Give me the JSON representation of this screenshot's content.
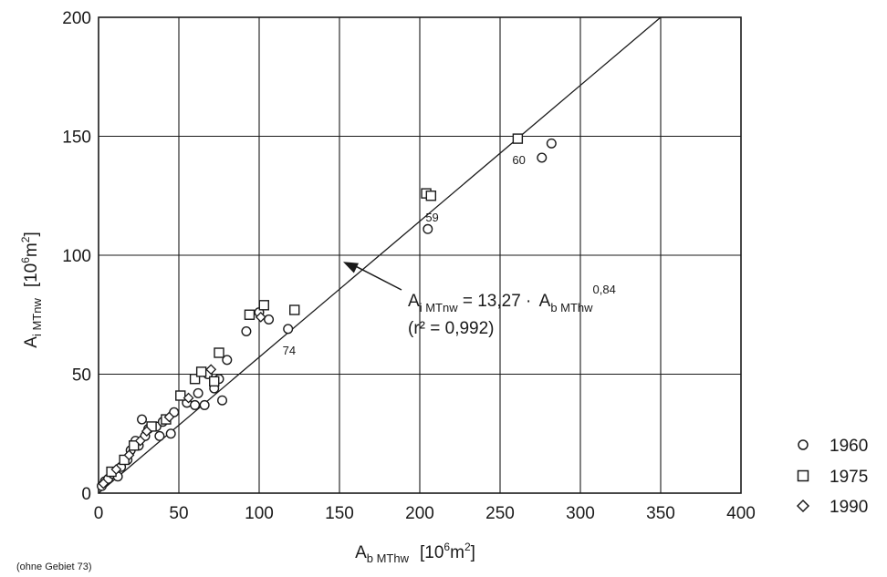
{
  "chart_data": {
    "type": "scatter",
    "x_axis": {
      "label_main": "A",
      "label_sub": "b MThw",
      "label_unit_pre": "[10",
      "label_unit_exp": "6",
      "label_unit_mid": "m",
      "label_unit_exp2": "2",
      "label_unit_post": "]",
      "range": [
        0,
        400
      ],
      "ticks": [
        0,
        50,
        100,
        150,
        200,
        250,
        300,
        350,
        400
      ]
    },
    "y_axis": {
      "label_main": "A",
      "label_sub": "i MTnw",
      "label_unit_pre": "[10",
      "label_unit_exp": "6",
      "label_unit_mid": "m",
      "label_unit_exp2": "2",
      "label_unit_post": "]",
      "range": [
        0,
        200
      ],
      "ticks": [
        0,
        50,
        100,
        150,
        200
      ]
    },
    "grid": true,
    "regression": {
      "coef": 13.27,
      "exponent": 0.84,
      "eq_lhs_main": "A",
      "eq_lhs_sub": "i MTnw",
      "eq_mid": " = 13,27 · ",
      "eq_rhs_main": "A",
      "eq_rhs_sub": "b MThw",
      "eq_rhs_exp": "0,84",
      "r2_text": "(r² = 0,992)",
      "arrow_target": [
        150,
        98
      ]
    },
    "series": [
      {
        "name": "1960",
        "marker": "circle",
        "points": [
          [
            2,
            3
          ],
          [
            4,
            5
          ],
          [
            6,
            6
          ],
          [
            9,
            8
          ],
          [
            12,
            7
          ],
          [
            14,
            11
          ],
          [
            18,
            14
          ],
          [
            20,
            18
          ],
          [
            23,
            22
          ],
          [
            25,
            20
          ],
          [
            27,
            31
          ],
          [
            29,
            24
          ],
          [
            31,
            27
          ],
          [
            36,
            28
          ],
          [
            38,
            24
          ],
          [
            40,
            30
          ],
          [
            45,
            25
          ],
          [
            47,
            34
          ],
          [
            55,
            38
          ],
          [
            60,
            37
          ],
          [
            62,
            42
          ],
          [
            66,
            37
          ],
          [
            68,
            50
          ],
          [
            72,
            44
          ],
          [
            75,
            48
          ],
          [
            77,
            39
          ],
          [
            80,
            56
          ],
          [
            92,
            68
          ],
          [
            100,
            76
          ],
          [
            106,
            73
          ],
          [
            118,
            69
          ],
          [
            205,
            111
          ],
          [
            276,
            141
          ],
          [
            282,
            147
          ]
        ]
      },
      {
        "name": "1975",
        "marker": "square",
        "points": [
          [
            8,
            9
          ],
          [
            16,
            14
          ],
          [
            22,
            20
          ],
          [
            33,
            28
          ],
          [
            42,
            31
          ],
          [
            51,
            41
          ],
          [
            60,
            48
          ],
          [
            64,
            51
          ],
          [
            72,
            47
          ],
          [
            75,
            59
          ],
          [
            94,
            75
          ],
          [
            103,
            79
          ],
          [
            122,
            77
          ],
          [
            204,
            126
          ],
          [
            207,
            125
          ],
          [
            261,
            149
          ]
        ]
      },
      {
        "name": "1990",
        "marker": "diamond",
        "points": [
          [
            3,
            4
          ],
          [
            11,
            10
          ],
          [
            19,
            16
          ],
          [
            26,
            22
          ],
          [
            30,
            26
          ],
          [
            44,
            32
          ],
          [
            56,
            40
          ],
          [
            70,
            52
          ],
          [
            101,
            74
          ]
        ]
      }
    ],
    "point_labels": [
      {
        "text": "60",
        "x": 261,
        "y": 149
      },
      {
        "text": "59",
        "x": 207,
        "y": 125
      },
      {
        "text": "74",
        "x": 118,
        "y": 69
      }
    ],
    "legend": {
      "placement": "bottom-right outside",
      "items": [
        "1960",
        "1975",
        "1990"
      ]
    }
  },
  "footnote": "(ohne Gebiet 73)"
}
